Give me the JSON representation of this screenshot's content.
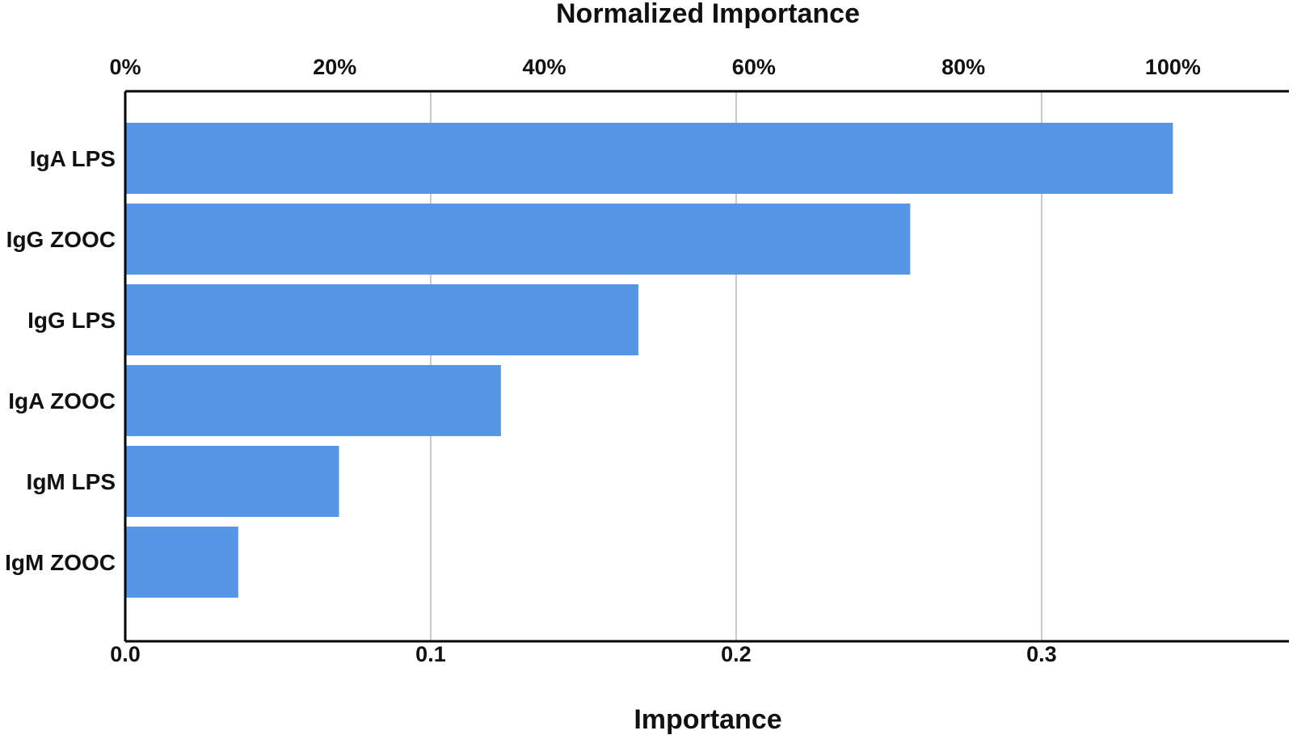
{
  "chart_data": {
    "type": "bar",
    "orientation": "horizontal",
    "categories": [
      "IgA LPS",
      "IgG ZOOC",
      "IgG LPS",
      "IgA ZOOC",
      "IgM LPS",
      "IgM ZOOC"
    ],
    "values": [
      0.343,
      0.257,
      0.168,
      0.123,
      0.07,
      0.037
    ],
    "xlabel": "Importance",
    "x2label": "Normalized Importance",
    "xlim": [
      0,
      0.381
    ],
    "xticks": [
      0.0,
      0.1,
      0.2,
      0.3
    ],
    "xtick_labels": [
      "0.0",
      "0.1",
      "0.2",
      "0.3"
    ],
    "x2ticks": [
      0,
      20,
      40,
      60,
      80,
      100
    ],
    "x2tick_labels": [
      "0%",
      "20%",
      "40%",
      "60%",
      "80%",
      "100%"
    ],
    "x2_reference_value": 0.343,
    "grid": "vertical",
    "bar_color": "#5596e6"
  }
}
